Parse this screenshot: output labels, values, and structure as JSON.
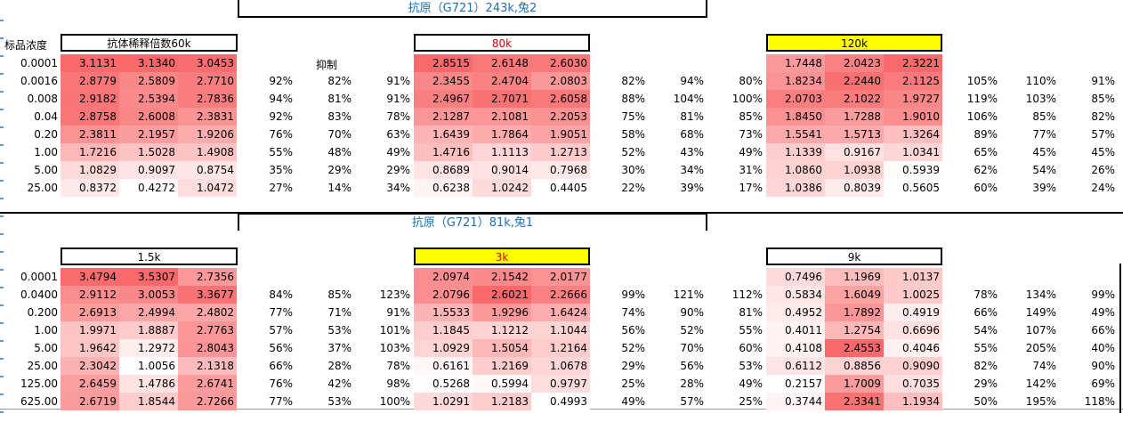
{
  "colors": {
    "high": "#f8696b",
    "low": "#ffffff",
    "title_text": "#1f6fb2",
    "highlight": "#ffff00",
    "red_text": "#d40000",
    "rail": "#5b9bd5"
  },
  "section1": {
    "title": "抗原（G721）243k,兔2",
    "col_label": "标品浓度",
    "inhibit_label": "抑制",
    "groups": [
      {
        "header": "抗体稀释倍数60k",
        "highlight": false,
        "red": false
      },
      {
        "header": "80k",
        "highlight": false,
        "red": true
      },
      {
        "header": "120k",
        "highlight": true,
        "red": false
      }
    ],
    "conc": [
      "0.0001",
      "0.0016",
      "0.008",
      "0.04",
      "0.20",
      "1.00",
      "5.00",
      "25.00"
    ],
    "values": [
      [
        [
          "3.1131",
          "3.1340",
          "3.0453"
        ],
        [
          "2.8515",
          "2.6148",
          "2.6030"
        ],
        [
          "1.7448",
          "2.0423",
          "2.3221"
        ]
      ],
      [
        [
          "2.8779",
          "2.5809",
          "2.7710"
        ],
        [
          "2.3455",
          "2.4704",
          "2.0803"
        ],
        [
          "1.8234",
          "2.2440",
          "2.1125"
        ]
      ],
      [
        [
          "2.9182",
          "2.5394",
          "2.7836"
        ],
        [
          "2.4967",
          "2.7071",
          "2.6058"
        ],
        [
          "2.0703",
          "2.1022",
          "1.9727"
        ]
      ],
      [
        [
          "2.8758",
          "2.6008",
          "2.3831"
        ],
        [
          "2.1287",
          "2.1081",
          "2.2053"
        ],
        [
          "1.8450",
          "1.7288",
          "1.9010"
        ]
      ],
      [
        [
          "2.3811",
          "2.1957",
          "1.9206"
        ],
        [
          "1.6439",
          "1.7864",
          "1.9051"
        ],
        [
          "1.5541",
          "1.5713",
          "1.3264"
        ]
      ],
      [
        [
          "1.7216",
          "1.5028",
          "1.4908"
        ],
        [
          "1.4716",
          "1.1113",
          "1.2713"
        ],
        [
          "1.1339",
          "0.9167",
          "1.0341"
        ]
      ],
      [
        [
          "1.0829",
          "0.9097",
          "0.8754"
        ],
        [
          "0.8689",
          "0.9014",
          "0.7968"
        ],
        [
          "1.0860",
          "1.0938",
          "0.5939"
        ]
      ],
      [
        [
          "0.8372",
          "0.4272",
          "1.0472"
        ],
        [
          "0.6238",
          "1.0242",
          "0.4405"
        ],
        [
          "1.0386",
          "0.8039",
          "0.5605"
        ]
      ]
    ],
    "pcts": [
      [
        [
          "",
          "",
          ""
        ],
        [
          "",
          "",
          ""
        ],
        [
          "",
          "",
          ""
        ]
      ],
      [
        [
          "92%",
          "82%",
          "91%"
        ],
        [
          "82%",
          "94%",
          "80%"
        ],
        [
          "105%",
          "110%",
          "91%"
        ]
      ],
      [
        [
          "94%",
          "81%",
          "91%"
        ],
        [
          "88%",
          "104%",
          "100%"
        ],
        [
          "119%",
          "103%",
          "85%"
        ]
      ],
      [
        [
          "92%",
          "83%",
          "78%"
        ],
        [
          "75%",
          "81%",
          "85%"
        ],
        [
          "106%",
          "85%",
          "82%"
        ]
      ],
      [
        [
          "76%",
          "70%",
          "63%"
        ],
        [
          "58%",
          "68%",
          "73%"
        ],
        [
          "89%",
          "77%",
          "57%"
        ]
      ],
      [
        [
          "55%",
          "48%",
          "49%"
        ],
        [
          "52%",
          "43%",
          "49%"
        ],
        [
          "65%",
          "45%",
          "45%"
        ]
      ],
      [
        [
          "35%",
          "29%",
          "29%"
        ],
        [
          "30%",
          "34%",
          "31%"
        ],
        [
          "62%",
          "54%",
          "26%"
        ]
      ],
      [
        [
          "27%",
          "14%",
          "34%"
        ],
        [
          "22%",
          "39%",
          "17%"
        ],
        [
          "60%",
          "39%",
          "24%"
        ]
      ]
    ]
  },
  "section2": {
    "title": "抗原（G721）81k,兔1",
    "groups": [
      {
        "header": "1.5k",
        "highlight": false,
        "red": false
      },
      {
        "header": "3k",
        "highlight": true,
        "red": true
      },
      {
        "header": "9k",
        "highlight": false,
        "red": false
      }
    ],
    "conc": [
      "0.0001",
      "0.0400",
      "0.200",
      "1.00",
      "5.00",
      "25.00",
      "125.00",
      "625.00"
    ],
    "values": [
      [
        [
          "3.4794",
          "3.5307",
          "2.7356"
        ],
        [
          "2.0974",
          "2.1542",
          "2.0177"
        ],
        [
          "0.7496",
          "1.1969",
          "1.0137"
        ]
      ],
      [
        [
          "2.9112",
          "3.0053",
          "3.3677"
        ],
        [
          "2.0796",
          "2.6021",
          "2.2666"
        ],
        [
          "0.5834",
          "1.6049",
          "1.0025"
        ]
      ],
      [
        [
          "2.6913",
          "2.4994",
          "2.4802"
        ],
        [
          "1.5533",
          "1.9296",
          "1.6424"
        ],
        [
          "0.4952",
          "1.7892",
          "0.4919"
        ]
      ],
      [
        [
          "1.9971",
          "1.8887",
          "2.7763"
        ],
        [
          "1.1845",
          "1.1212",
          "1.1044"
        ],
        [
          "0.4011",
          "1.2754",
          "0.6696"
        ]
      ],
      [
        [
          "1.9642",
          "1.2972",
          "2.8043"
        ],
        [
          "1.0929",
          "1.5054",
          "1.2164"
        ],
        [
          "0.4108",
          "2.4553",
          "0.4046"
        ]
      ],
      [
        [
          "2.3042",
          "1.0056",
          "2.1318"
        ],
        [
          "0.6161",
          "1.2169",
          "1.0678"
        ],
        [
          "0.6112",
          "0.8856",
          "0.9090"
        ]
      ],
      [
        [
          "2.6459",
          "1.4786",
          "2.6741"
        ],
        [
          "0.5268",
          "0.5994",
          "0.9797"
        ],
        [
          "0.2157",
          "1.7009",
          "0.7035"
        ]
      ],
      [
        [
          "2.6719",
          "1.8544",
          "2.7266"
        ],
        [
          "1.0291",
          "1.2183",
          "0.4993"
        ],
        [
          "0.3744",
          "2.3341",
          "1.1934"
        ]
      ]
    ],
    "pcts": [
      [
        [
          "",
          "",
          ""
        ],
        [
          "",
          "",
          ""
        ],
        [
          "",
          "",
          ""
        ]
      ],
      [
        [
          "84%",
          "85%",
          "123%"
        ],
        [
          "99%",
          "121%",
          "112%"
        ],
        [
          "78%",
          "134%",
          "99%"
        ]
      ],
      [
        [
          "77%",
          "71%",
          "91%"
        ],
        [
          "74%",
          "90%",
          "81%"
        ],
        [
          "66%",
          "149%",
          "49%"
        ]
      ],
      [
        [
          "57%",
          "53%",
          "101%"
        ],
        [
          "56%",
          "52%",
          "55%"
        ],
        [
          "54%",
          "107%",
          "66%"
        ]
      ],
      [
        [
          "56%",
          "37%",
          "103%"
        ],
        [
          "52%",
          "70%",
          "60%"
        ],
        [
          "55%",
          "205%",
          "40%"
        ]
      ],
      [
        [
          "66%",
          "28%",
          "78%"
        ],
        [
          "29%",
          "56%",
          "53%"
        ],
        [
          "82%",
          "74%",
          "90%"
        ]
      ],
      [
        [
          "76%",
          "42%",
          "98%"
        ],
        [
          "25%",
          "28%",
          "49%"
        ],
        [
          "29%",
          "142%",
          "69%"
        ]
      ],
      [
        [
          "77%",
          "53%",
          "100%"
        ],
        [
          "49%",
          "57%",
          "25%"
        ],
        [
          "50%",
          "195%",
          "118%"
        ]
      ]
    ]
  }
}
